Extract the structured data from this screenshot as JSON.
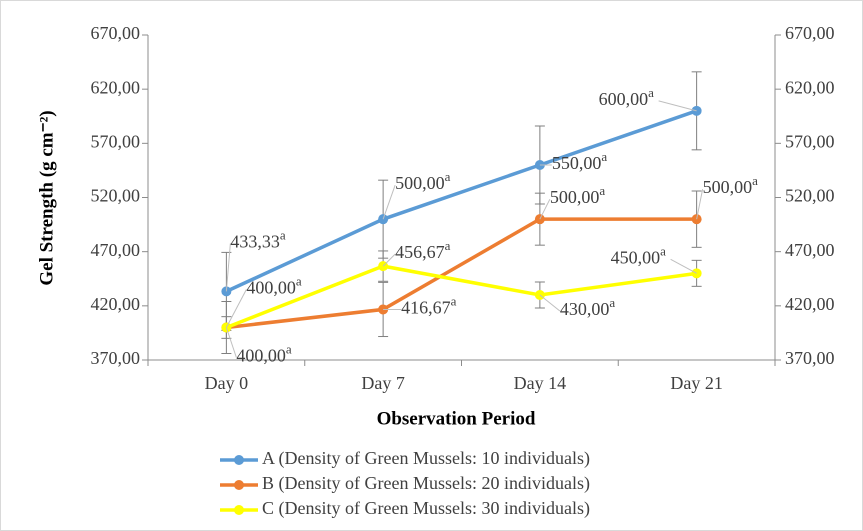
{
  "chart_data": {
    "type": "line",
    "xlabel": "Observation Period",
    "ylabel": "Gel Strength (g cm⁻²)",
    "categories": [
      "Day 0",
      "Day 7",
      "Day 14",
      "Day 21"
    ],
    "ylim": [
      370,
      670
    ],
    "yticks": [
      {
        "value": 370,
        "label": "370,00"
      },
      {
        "value": 420,
        "label": "420,00"
      },
      {
        "value": 470,
        "label": "470,00"
      },
      {
        "value": 520,
        "label": "520,00"
      },
      {
        "value": 570,
        "label": "570,00"
      },
      {
        "value": 620,
        "label": "620,00"
      },
      {
        "value": 670,
        "label": "670,00"
      }
    ],
    "y2lim": [
      370,
      670
    ],
    "y2ticks": [
      {
        "value": 370,
        "label": "370,00"
      },
      {
        "value": 420,
        "label": "420,00"
      },
      {
        "value": 470,
        "label": "470,00"
      },
      {
        "value": 520,
        "label": "520,00"
      },
      {
        "value": 570,
        "label": "570,00"
      },
      {
        "value": 620,
        "label": "620,00"
      },
      {
        "value": 670,
        "label": "670,00"
      }
    ],
    "legend": "bottom",
    "error_color": "#7f7f7f",
    "series": [
      {
        "name": "A (Density of Green Mussels: 10 individuals)",
        "color": "#5b9bd5",
        "values": [
          433.33,
          500,
          550,
          600
        ],
        "value_labels": [
          "433,33",
          "500,00",
          "550,00",
          "600,00"
        ],
        "superscripts": [
          "a",
          "a",
          "a",
          "a"
        ],
        "errors": [
          36,
          36,
          36,
          36
        ]
      },
      {
        "name": "B (Density of Green Mussels: 20 individuals)",
        "color": "#ed7d31",
        "values": [
          400,
          416.67,
          500,
          500
        ],
        "value_labels": [
          "400,00",
          "416,67",
          "500,00",
          "500,00"
        ],
        "superscripts": [
          "a",
          "a",
          "a",
          "a"
        ],
        "errors": [
          24,
          25,
          24,
          26
        ]
      },
      {
        "name": "C (Density of Green Mussels: 30 individuals)",
        "color": "#ffff00",
        "values": [
          400,
          456.67,
          430,
          450
        ],
        "value_labels": [
          "400,00",
          "456,67",
          "430,00",
          "450,00"
        ],
        "superscripts": [
          "a",
          "a",
          "a",
          "a"
        ],
        "errors": [
          10,
          14,
          12,
          12
        ]
      }
    ]
  }
}
